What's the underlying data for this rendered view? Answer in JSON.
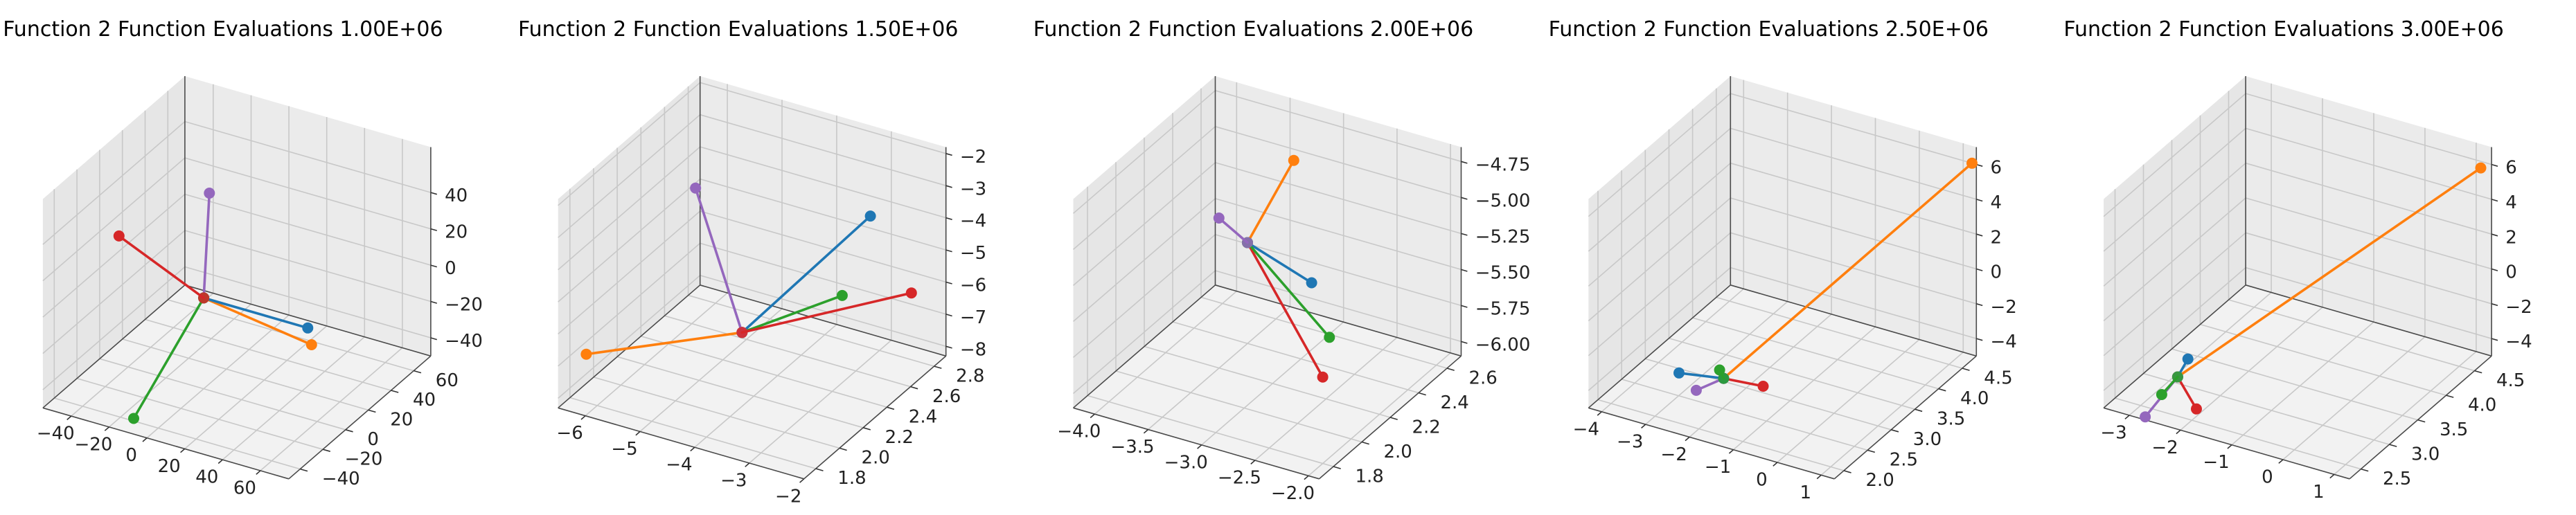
{
  "colors": {
    "blue": "#1f77b4",
    "orange": "#ff7f0e",
    "green": "#2ca02c",
    "red": "#d62728",
    "purple": "#9467bd"
  },
  "chart_data": [
    {
      "type": "scatter3d-lines",
      "title": "Function 2 Function Evaluations 1.00E+06",
      "xlim": [
        -55,
        75
      ],
      "ylim": [
        -50,
        75
      ],
      "zlim": [
        -50,
        65
      ],
      "xticks": [
        -40,
        -20,
        0,
        20,
        40,
        60
      ],
      "yticks": [
        -40,
        -20,
        0,
        20,
        40,
        60
      ],
      "zticks": [
        -40,
        -20,
        0,
        20,
        40
      ],
      "xtick_labels": [
        "−40",
        "−20",
        "0",
        "20",
        "40",
        "60"
      ],
      "ytick_labels": [
        "−40",
        "−20",
        "0",
        "20",
        "40",
        "60"
      ],
      "ztick_labels": [
        "−40",
        "−20",
        "0",
        "20",
        "40"
      ],
      "center": [
        0,
        0,
        0
      ],
      "series": [
        {
          "color": "blue",
          "point": [
            55,
            0,
            0
          ]
        },
        {
          "color": "orange",
          "point": [
            60,
            -5,
            -5
          ]
        },
        {
          "color": "green",
          "point": [
            -10,
            -45,
            -45
          ]
        },
        {
          "color": "red",
          "point": [
            -52,
            12,
            12
          ]
        },
        {
          "color": "purple",
          "point": [
            0,
            5,
            55
          ]
        }
      ]
    },
    {
      "type": "scatter3d-lines",
      "title": "Function 2 Function Evaluations 1.50E+06",
      "xlim": [
        -6.5,
        -2
      ],
      "ylim": [
        1.7,
        2.9
      ],
      "zlim": [
        -8.3,
        -1.8
      ],
      "xticks": [
        -6,
        -5,
        -4,
        -3,
        -2
      ],
      "yticks": [
        1.8,
        2.0,
        2.2,
        2.4,
        2.6,
        2.8
      ],
      "zticks": [
        -8,
        -7,
        -6,
        -5,
        -4,
        -3,
        -2
      ],
      "xtick_labels": [
        "−6",
        "−5",
        "−4",
        "−3",
        "−2"
      ],
      "ytick_labels": [
        "1.8",
        "2.0",
        "2.2",
        "2.4",
        "2.6",
        "2.8"
      ],
      "ztick_labels": [
        "−8",
        "−7",
        "−6",
        "−5",
        "−4",
        "−3",
        "−2"
      ],
      "center": [
        -4.0,
        2.1,
        -6.0
      ],
      "series": [
        {
          "color": "blue",
          "point": [
            -2.3,
            2.4,
            -2.5
          ]
        },
        {
          "color": "orange",
          "point": [
            -6.2,
            1.8,
            -6.8
          ]
        },
        {
          "color": "green",
          "point": [
            -2.6,
            2.3,
            -4.8
          ]
        },
        {
          "color": "red",
          "point": [
            -2.2,
            2.7,
            -5.8
          ]
        },
        {
          "color": "purple",
          "point": [
            -5.5,
            2.4,
            -3.2
          ]
        }
      ]
    },
    {
      "type": "scatter3d-lines",
      "title": "Function 2 Function Evaluations 2.00E+06",
      "xlim": [
        -4.2,
        -1.9
      ],
      "ylim": [
        1.7,
        2.7
      ],
      "zlim": [
        -6.1,
        -4.65
      ],
      "xticks": [
        -4.0,
        -3.5,
        -3.0,
        -2.5,
        -2.0
      ],
      "yticks": [
        1.8,
        2.0,
        2.2,
        2.4,
        2.6
      ],
      "zticks": [
        -6.0,
        -5.75,
        -5.5,
        -5.25,
        -5.0,
        -4.75
      ],
      "xtick_labels": [
        "−4.0",
        "−3.5",
        "−3.0",
        "−2.5",
        "−2.0"
      ],
      "ytick_labels": [
        "1.8",
        "2.0",
        "2.2",
        "2.4",
        "2.6"
      ],
      "ztick_labels": [
        "−6.00",
        "−5.75",
        "−5.50",
        "−5.25",
        "−5.00",
        "−4.75"
      ],
      "center": [
        -3.5,
        2.4,
        -5.4
      ],
      "series": [
        {
          "color": "blue",
          "point": [
            -2.9,
            2.4,
            -5.55
          ]
        },
        {
          "color": "orange",
          "point": [
            -3.2,
            2.5,
            -4.85
          ]
        },
        {
          "color": "green",
          "point": [
            -2.8,
            2.45,
            -5.95
          ]
        },
        {
          "color": "red",
          "point": [
            -2.0,
            1.8,
            -5.5
          ]
        },
        {
          "color": "purple",
          "point": [
            -3.9,
            2.5,
            -5.4
          ]
        }
      ]
    },
    {
      "type": "scatter3d-lines",
      "title": "Function 2 Function Evaluations 2.50E+06",
      "xlim": [
        -4.3,
        1.3
      ],
      "ylim": [
        1.8,
        4.8
      ],
      "zlim": [
        -5,
        7
      ],
      "xticks": [
        -4,
        -3,
        -2,
        -1,
        0,
        1
      ],
      "yticks": [
        2.0,
        2.5,
        3.0,
        3.5,
        4.0,
        4.5
      ],
      "zticks": [
        -4,
        -2,
        0,
        2,
        4,
        6
      ],
      "xtick_labels": [
        "−4",
        "−3",
        "−2",
        "−1",
        "0",
        "1"
      ],
      "ytick_labels": [
        "2.0",
        "2.5",
        "3.0",
        "3.5",
        "4.0",
        "4.5"
      ],
      "ztick_labels": [
        "−4",
        "−2",
        "0",
        "2",
        "4",
        "6"
      ],
      "center": [
        -2.3,
        2.8,
        -4.2
      ],
      "series": [
        {
          "color": "blue",
          "point": [
            -3.1,
            2.6,
            -4.0
          ]
        },
        {
          "color": "orange",
          "point": [
            1.2,
            4.8,
            6.0
          ]
        },
        {
          "color": "green",
          "point": [
            -2.5,
            2.9,
            -4.1
          ]
        },
        {
          "color": "red",
          "point": [
            -1.4,
            2.8,
            -4.0
          ]
        },
        {
          "color": "purple",
          "point": [
            -2.6,
            2.5,
            -4.4
          ]
        }
      ]
    },
    {
      "type": "scatter3d-lines",
      "title": "Function 2 Function Evaluations 3.00E+06",
      "xlim": [
        -3.5,
        1.3
      ],
      "ylim": [
        2.3,
        4.8
      ],
      "zlim": [
        -5,
        7
      ],
      "xticks": [
        -3,
        -2,
        -1,
        0,
        1
      ],
      "yticks": [
        2.5,
        3.0,
        3.5,
        4.0,
        4.5
      ],
      "zticks": [
        -4,
        -2,
        0,
        2,
        4,
        6
      ],
      "xtick_labels": [
        "−3",
        "−2",
        "−1",
        "0",
        "1"
      ],
      "ytick_labels": [
        "2.5",
        "3.0",
        "3.5",
        "4.0",
        "4.5"
      ],
      "ztick_labels": [
        "−4",
        "−2",
        "0",
        "2",
        "4",
        "6"
      ],
      "center": [
        -2.5,
        2.7,
        -3.5
      ],
      "series": [
        {
          "color": "blue",
          "point": [
            -2.3,
            2.7,
            -2.3
          ]
        },
        {
          "color": "orange",
          "point": [
            1.2,
            4.7,
            6.0
          ]
        },
        {
          "color": "green",
          "point": [
            -2.7,
            2.6,
            -4.4
          ]
        },
        {
          "color": "red",
          "point": [
            -1.8,
            2.4,
            -3.9
          ]
        },
        {
          "color": "purple",
          "point": [
            -2.8,
            2.4,
            -5.2
          ]
        }
      ]
    }
  ]
}
